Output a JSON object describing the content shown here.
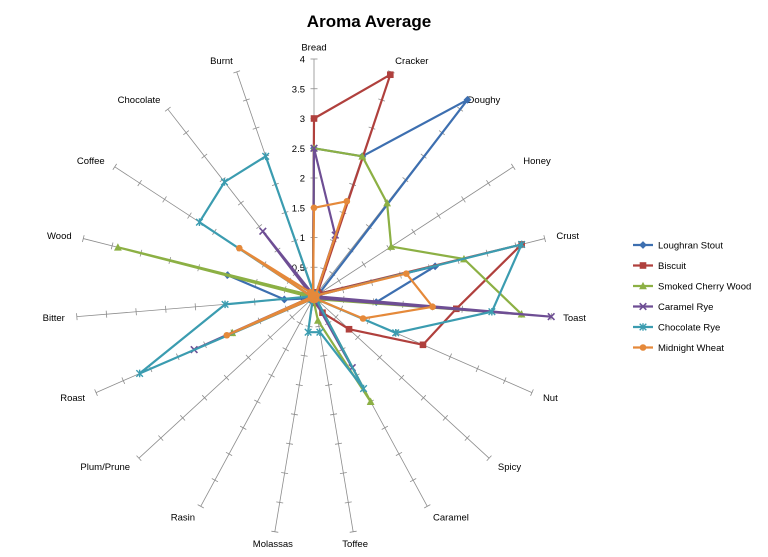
{
  "chart_data": {
    "type": "radar",
    "title": "Aroma Average",
    "categories": [
      "Bread",
      "Cracker",
      "Doughy",
      "Honey",
      "Crust",
      "Toast",
      "Nut",
      "Spicy",
      "Caramel",
      "Toffee",
      "Molassas",
      "Rasin",
      "Plum/Prune",
      "Roast",
      "Bitter",
      "Wood",
      "Coffee",
      "Chocolate",
      "Burnt"
    ],
    "rlim": [
      0,
      4
    ],
    "ticks": [
      0,
      0.5,
      1,
      1.5,
      2,
      2.5,
      3,
      3.5,
      4
    ],
    "tick_labels": [
      "0",
      "0.5",
      "1",
      "1.5",
      "2",
      "2.5",
      "3",
      "3.5",
      "4"
    ],
    "series": [
      {
        "name": "Loughran Stout",
        "color": "#3d6fb0",
        "marker": "diamond",
        "values": [
          2.5,
          2.5,
          4.2,
          0.1,
          2.1,
          1.05,
          0.1,
          0.05,
          0.05,
          0.05,
          0.05,
          0.05,
          0.05,
          0.05,
          0.5,
          1.5,
          0.05,
          0.05,
          0.05
        ]
      },
      {
        "name": "Biscuit",
        "color": "#b0403d",
        "marker": "square",
        "values": [
          3.0,
          3.95,
          0.1,
          0.1,
          3.6,
          2.4,
          2.0,
          0.8,
          0.3,
          0.1,
          0.05,
          0.05,
          0.05,
          0.05,
          0.05,
          0.05,
          0.05,
          0.05,
          0.05
        ]
      },
      {
        "name": "Smoked Cherry Wood",
        "color": "#8cb044",
        "marker": "triangle",
        "values": [
          2.5,
          2.5,
          2.0,
          1.55,
          2.6,
          3.5,
          0.1,
          0.05,
          2.0,
          0.4,
          0.05,
          0.05,
          0.05,
          1.5,
          0.05,
          3.4,
          0.05,
          0.05,
          0.05
        ]
      },
      {
        "name": "Caramel Rye",
        "color": "#6e4e94",
        "marker": "x",
        "values": [
          2.5,
          1.1,
          0.05,
          0.05,
          0.05,
          4.0,
          0.05,
          0.05,
          1.35,
          0.05,
          0.05,
          0.05,
          0.05,
          2.2,
          0.05,
          0.05,
          0.05,
          1.4,
          0.05
        ]
      },
      {
        "name": "Chocolate Rye",
        "color": "#3b9cb0",
        "marker": "star",
        "values": [
          0.05,
          0.05,
          0.05,
          0.05,
          3.6,
          3.0,
          1.5,
          0.05,
          1.75,
          0.6,
          0.6,
          0.05,
          0.05,
          3.2,
          1.5,
          0.05,
          2.3,
          2.45,
          2.5
        ]
      },
      {
        "name": "Midnight Wheat",
        "color": "#e5893a",
        "marker": "circle",
        "values": [
          1.5,
          1.7,
          0.05,
          0.05,
          1.6,
          2.0,
          0.9,
          0.05,
          0.05,
          0.05,
          0.05,
          0.05,
          0.05,
          1.6,
          0.05,
          0.05,
          1.5,
          0.1,
          0.05
        ]
      }
    ],
    "legend_position": "right"
  }
}
